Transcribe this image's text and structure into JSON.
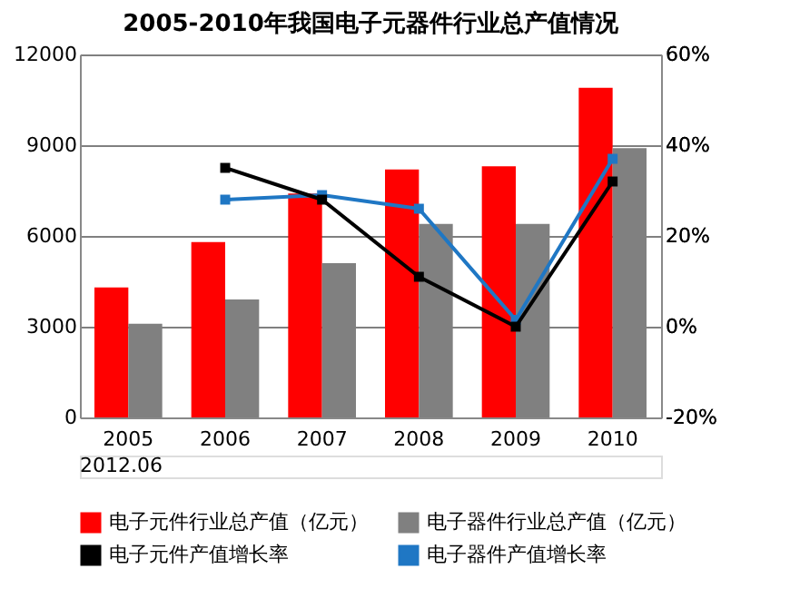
{
  "chart_data": {
    "type": "bar",
    "title": "2005-2010年我国电子元器件行业总产值情况",
    "categories": [
      "2005",
      "2006",
      "2007",
      "2008",
      "2009",
      "2010"
    ],
    "series": [
      {
        "name": "电子元件行业总产值（亿元）",
        "color": "#ff0000",
        "values": [
          4300,
          5800,
          7400,
          8200,
          8300,
          10900
        ]
      },
      {
        "name": "电子器件行业总产值（亿元）",
        "color": "#808080",
        "values": [
          3100,
          3900,
          5100,
          6400,
          6400,
          8900
        ]
      },
      {
        "name": "电子元件产值增长率",
        "type": "line",
        "axis": "y2",
        "color": "#000000",
        "marker": "square",
        "values": [
          null,
          35,
          28,
          11,
          0,
          32
        ]
      },
      {
        "name": "电子器件产值增长率",
        "type": "line",
        "axis": "y2",
        "color": "#1f77c4",
        "marker": "square",
        "values": [
          null,
          28,
          29,
          26,
          1.5,
          37
        ]
      }
    ],
    "ylim": [
      0,
      12000
    ],
    "yticks": [
      0,
      3000,
      6000,
      9000,
      12000
    ],
    "y2lim": [
      -20,
      60
    ],
    "y2ticks": [
      {
        "value": -20,
        "label": "-20%"
      },
      {
        "value": 0,
        "label": "0%"
      },
      {
        "value": 20,
        "label": "20%"
      },
      {
        "value": 40,
        "label": "40%"
      },
      {
        "value": 60,
        "label": "60%"
      }
    ],
    "grid": "y",
    "legend": "bottom",
    "annotations": [
      "2012.06"
    ]
  }
}
